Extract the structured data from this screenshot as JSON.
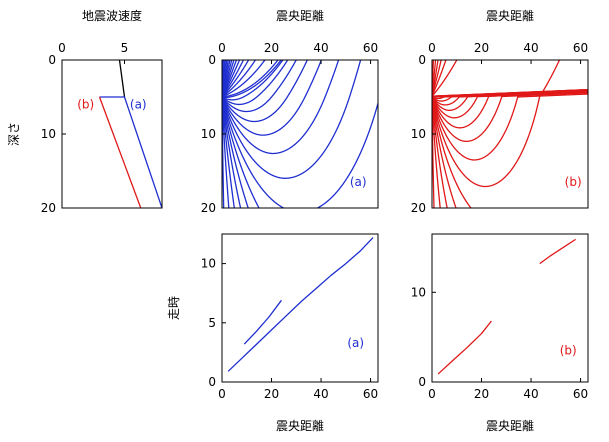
{
  "colors": {
    "blue": "#1f2fd0",
    "red": "#e01818",
    "black": "#000000"
  },
  "chart_data": [
    {
      "id": "velocity",
      "type": "line",
      "xlabel": "地震波速度",
      "ylabel": "深さ",
      "x_axis_position": "top",
      "xlim": [
        0,
        8
      ],
      "ylim": [
        0,
        20
      ],
      "y_inverted": true,
      "xticks": [
        0,
        5
      ],
      "yticks": [
        0,
        10,
        20
      ],
      "series": [
        {
          "color": "black",
          "points": [
            [
              4.6,
              0
            ],
            [
              5.0,
              5
            ]
          ]
        },
        {
          "color": "blue",
          "points": [
            [
              3.0,
              5
            ],
            [
              5.0,
              5
            ],
            [
              8.0,
              20
            ]
          ]
        },
        {
          "color": "red",
          "points": [
            [
              3.0,
              5
            ],
            [
              6.3,
              20
            ]
          ]
        }
      ],
      "annotations": [
        {
          "text": "(b)",
          "x": 1.9,
          "y": 6.0,
          "color": "red"
        },
        {
          "text": "(a)",
          "x": 6.1,
          "y": 6.0,
          "color": "blue"
        }
      ]
    },
    {
      "id": "rays-a",
      "type": "line",
      "xlabel": "震央距離",
      "x_axis_position": "top",
      "xlim": [
        0,
        63
      ],
      "ylim": [
        0,
        20
      ],
      "y_inverted": true,
      "xticks": [
        0,
        20,
        40,
        60
      ],
      "yticks": [
        0,
        10,
        20
      ],
      "ray_color": "blue",
      "ray_source_depth": 5,
      "ray_family": "a",
      "annotations": [
        {
          "text": "(a)",
          "x": 55,
          "y": 16.5,
          "color": "blue"
        }
      ]
    },
    {
      "id": "rays-b",
      "type": "line",
      "xlabel": "震央距離",
      "x_axis_position": "top",
      "xlim": [
        0,
        63
      ],
      "ylim": [
        0,
        20
      ],
      "y_inverted": true,
      "xticks": [
        0,
        20,
        40,
        60
      ],
      "yticks": [
        0,
        10,
        20
      ],
      "ray_color": "red",
      "ray_source_depth": 5,
      "ray_family": "b",
      "annotations": [
        {
          "text": "(b)",
          "x": 57,
          "y": 16.5,
          "color": "red"
        }
      ]
    },
    {
      "id": "time-a",
      "type": "line",
      "xlabel": "震央距離",
      "ylabel": "走時",
      "x_axis_position": "bottom",
      "xlim": [
        0,
        63
      ],
      "ylim": [
        0,
        12.5
      ],
      "xticks": [
        0,
        20,
        40,
        60
      ],
      "yticks": [
        0,
        5,
        10
      ],
      "series": [
        {
          "color": "blue",
          "points": [
            [
              2.5,
              0.9
            ],
            [
              8,
              2.0
            ],
            [
              14,
              3.2
            ],
            [
              20,
              4.4
            ],
            [
              26,
              5.6
            ],
            [
              32,
              6.8
            ],
            [
              38,
              7.9
            ],
            [
              44,
              9.0
            ],
            [
              50,
              10.0
            ],
            [
              56,
              11.1
            ],
            [
              61,
              12.2
            ]
          ]
        },
        {
          "color": "blue",
          "points": [
            [
              9,
              3.2
            ],
            [
              14,
              4.3
            ],
            [
              19,
              5.5
            ],
            [
              24,
              6.9
            ]
          ]
        }
      ],
      "annotations": [
        {
          "text": "(a)",
          "x": 54,
          "y": 3.3,
          "color": "blue"
        }
      ]
    },
    {
      "id": "time-b",
      "type": "line",
      "xlabel": "震央距離",
      "x_axis_position": "bottom",
      "xlim": [
        0,
        63
      ],
      "ylim": [
        0,
        16.5
      ],
      "xticks": [
        0,
        20,
        40,
        60
      ],
      "yticks": [
        0,
        10
      ],
      "series": [
        {
          "color": "red",
          "points": [
            [
              2.5,
              0.9
            ],
            [
              8,
              2.3
            ],
            [
              14,
              3.8
            ],
            [
              20,
              5.4
            ],
            [
              24,
              6.8
            ]
          ]
        },
        {
          "color": "red",
          "points": [
            [
              43.5,
              13.2
            ],
            [
              48,
              14.1
            ],
            [
              53,
              15.0
            ],
            [
              58,
              15.9
            ]
          ]
        }
      ],
      "annotations": [
        {
          "text": "(b)",
          "x": 55,
          "y": 3.5,
          "color": "red"
        }
      ]
    }
  ]
}
